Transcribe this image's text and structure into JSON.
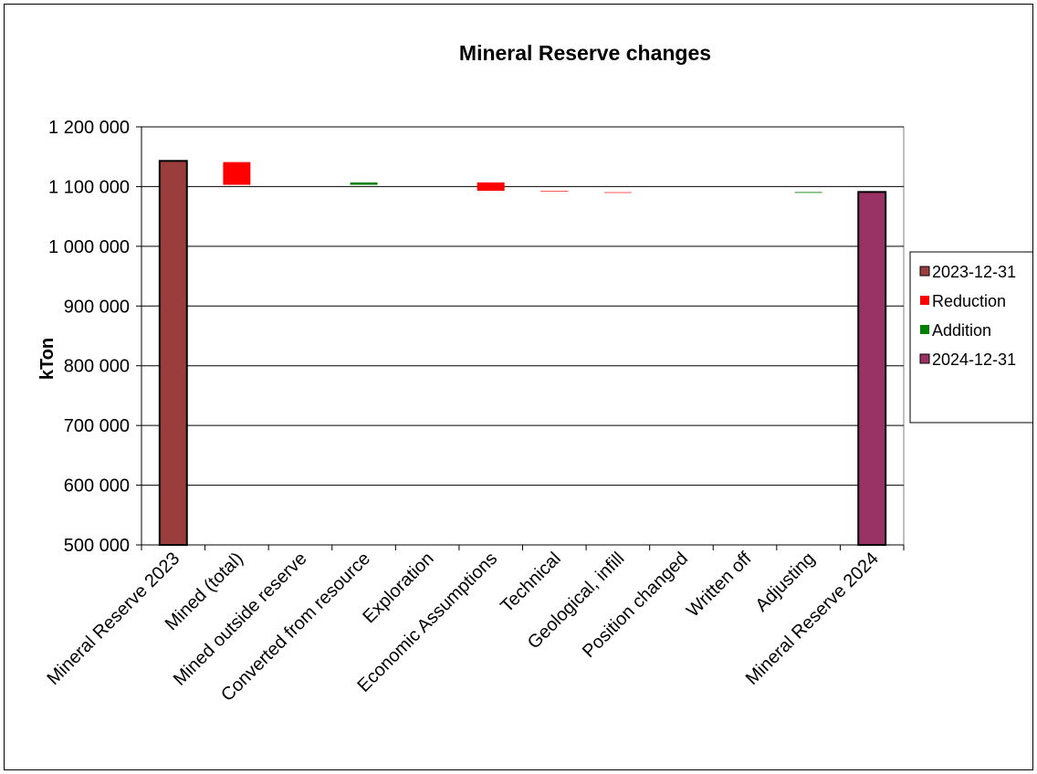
{
  "chart_data": {
    "type": "waterfall",
    "title": "Mineral Reserve changes",
    "ylabel": "kTon",
    "xlabel": "",
    "ylim": [
      500000,
      1200000
    ],
    "yticks": [
      500000,
      600000,
      700000,
      800000,
      900000,
      1000000,
      1100000,
      1200000
    ],
    "ytick_labels": [
      "500 000",
      "600 000",
      "700 000",
      "800 000",
      "900 000",
      "1 000 000",
      "1 100 000",
      "1 200 000"
    ],
    "grid": "horizontal",
    "legend_position": "right",
    "categories": [
      "Mineral Reserve 2023",
      "Mined (total)",
      "Mined outside reserve",
      "Converted from resource",
      "Exploration",
      "Economic Assumptions",
      "Technical",
      "Geological, infill",
      "Position changed",
      "Written off",
      "Adjusting",
      "Mineral Reserve 2024"
    ],
    "bars": [
      {
        "category": "Mineral Reserve 2023",
        "series": "2023-12-31",
        "from": 500000,
        "to": 1143000
      },
      {
        "category": "Mined (total)",
        "series": "Reduction",
        "from": 1103000,
        "to": 1141000
      },
      {
        "category": "Mined outside reserve",
        "series": "Reduction",
        "from": 1103000,
        "to": 1103000
      },
      {
        "category": "Converted from resource",
        "series": "Addition",
        "from": 1103000,
        "to": 1107000
      },
      {
        "category": "Exploration",
        "series": "Addition",
        "from": 1107000,
        "to": 1107000
      },
      {
        "category": "Economic Assumptions",
        "series": "Reduction",
        "from": 1093000,
        "to": 1107000
      },
      {
        "category": "Technical",
        "series": "Reduction",
        "from": 1091500,
        "to": 1092500
      },
      {
        "category": "Geological, infill",
        "series": "Reduction",
        "from": 1089500,
        "to": 1090500
      },
      {
        "category": "Position changed",
        "series": "Reduction",
        "from": 1090000,
        "to": 1090000
      },
      {
        "category": "Written off",
        "series": "Reduction",
        "from": 1090000,
        "to": 1090000
      },
      {
        "category": "Adjusting",
        "series": "Addition",
        "from": 1089500,
        "to": 1090800
      },
      {
        "category": "Mineral Reserve 2024",
        "series": "2024-12-31",
        "from": 500000,
        "to": 1091000
      }
    ],
    "legend": [
      {
        "name": "2023-12-31",
        "color": "#993D3D"
      },
      {
        "name": "Reduction",
        "color": "#FF0000"
      },
      {
        "name": "Addition",
        "color": "#008000"
      },
      {
        "name": "2024-12-31",
        "color": "#993366"
      }
    ]
  }
}
